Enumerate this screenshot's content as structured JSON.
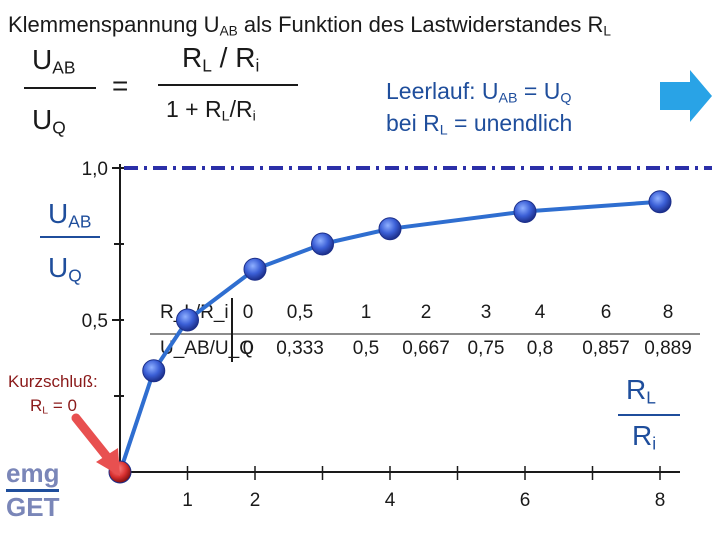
{
  "chart_data": {
    "type": "line",
    "title": "Klemmenspannung U_AB als Funktion des Lastwiderstandes R_L",
    "x": [
      0,
      0.5,
      1,
      2,
      3,
      4,
      6,
      8
    ],
    "values": [
      0,
      0.333,
      0.5,
      0.667,
      0.75,
      0.8,
      0.857,
      0.889
    ],
    "asymptote": 1.0,
    "xlim": [
      0,
      8
    ],
    "ylim": [
      0,
      1
    ],
    "x_ticks": [
      "1",
      "2",
      "4",
      "6",
      "8"
    ],
    "x_tick_values": [
      1,
      2,
      4,
      6,
      8
    ],
    "y_ticks": [
      "0,5",
      "1,0"
    ],
    "y_tick_values": [
      0.5,
      1.0
    ],
    "table": {
      "row1_label": "R_L/R_i",
      "row2_label": "U_AB/U_Q",
      "row1": [
        "0",
        "0,5",
        "1",
        "2",
        "3",
        "4",
        "6",
        "8"
      ],
      "row2": [
        "0",
        "0,333",
        "0,5",
        "0,667",
        "0,75",
        "0,8",
        "0,857",
        "0,889"
      ]
    },
    "colors": {
      "line": "#2f6ed0",
      "point": "#3b5fd6",
      "dash": "#2b2fa8",
      "arrow_right": "#29a3e6",
      "arrow_short": "#e85050"
    }
  },
  "title": {
    "p1": "Klemmenspannung U",
    "s1": "AB",
    "p2": " als Funktion des Lastwiderstandes R",
    "s2": "L"
  },
  "formula": {
    "lhs_num": "U",
    "lhs_num_sub": "AB",
    "lhs_den": "U",
    "lhs_den_sub": "Q",
    "equals": "=",
    "rhs_num_a": "R",
    "rhs_num_sub_a": "L",
    "rhs_num_mid": " / R",
    "rhs_num_sub_b": "i",
    "rhs_den_a": "1 + R",
    "rhs_den_sub_a": "L",
    "rhs_den_mid": "/R",
    "rhs_den_sub_b": "i"
  },
  "leerlauf": {
    "l1a": "Leerlauf: U",
    "l1s1": "AB",
    "l1b": " = U",
    "l1s2": "Q",
    "l2a": "bei R",
    "l2s": "L",
    "l2b": " = unendlich"
  },
  "kurzschluss": {
    "line1": "Kurzschluß:",
    "line2a": "R",
    "line2s": "L",
    "line2b": " = 0"
  },
  "axis": {
    "y_num": "U",
    "y_num_sub": "AB",
    "y_den": "U",
    "y_den_sub": "Q",
    "x_num": "R",
    "x_num_sub": "L",
    "x_den": "R",
    "x_den_sub": "i"
  },
  "brand": {
    "line1": "emg",
    "line2": "GET"
  }
}
